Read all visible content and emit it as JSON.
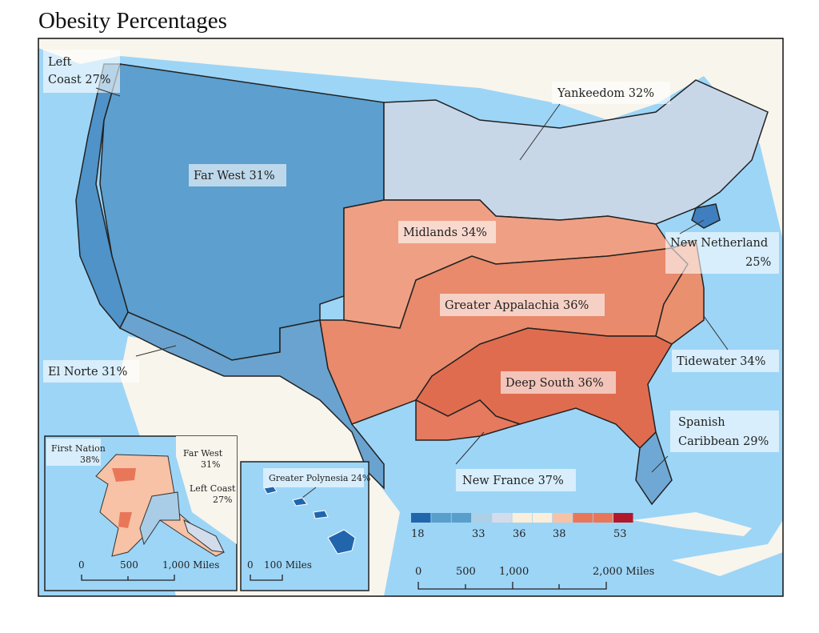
{
  "title": "Obesity Percentages",
  "colors": {
    "water": "#9dd5f7",
    "land": "#f8f5ec",
    "legend": [
      "#2166ac",
      "#5a9ecb",
      "#5a9ecb",
      "#acd0e6",
      "#d3dcea",
      "#fbeedb",
      "#fbeedb",
      "#f7c2a5",
      "#e8775a",
      "#e8775a",
      "#b2182b"
    ]
  },
  "regions": {
    "left_coast": {
      "name": "Left",
      "name2": "Coast 27%"
    },
    "far_west": "Far West 31%",
    "yankeedom": "Yankeedom 32%",
    "midlands": "Midlands 34%",
    "new_netherland": {
      "line1": "New Netherland",
      "line2": "25%"
    },
    "greater_appalachia": "Greater Appalachia 36%",
    "el_norte": "El Norte 31%",
    "tidewater": "Tidewater 34%",
    "deep_south": "Deep South 36%",
    "spanish_caribbean": {
      "line1": "Spanish",
      "line2": "Caribbean 29%"
    },
    "new_france": "New France 37%"
  },
  "legend": {
    "ticks": [
      "18",
      "33",
      "36",
      "38",
      "53"
    ]
  },
  "scale": {
    "ticks": [
      "0",
      "500",
      "1,000",
      "2,000 Miles"
    ]
  },
  "alaska_inset": {
    "first_nation": {
      "line1": "First Nation",
      "line2": "38%"
    },
    "far_west": {
      "line1": "Far West",
      "line2": "31%"
    },
    "left_coast": {
      "line1": "Left Coast",
      "line2": "27%"
    },
    "scale": [
      "0",
      "500",
      "1,000 Miles"
    ]
  },
  "hawaii_inset": {
    "label": "Greater Polynesia 24%",
    "scale": [
      "0",
      "100 Miles"
    ]
  }
}
